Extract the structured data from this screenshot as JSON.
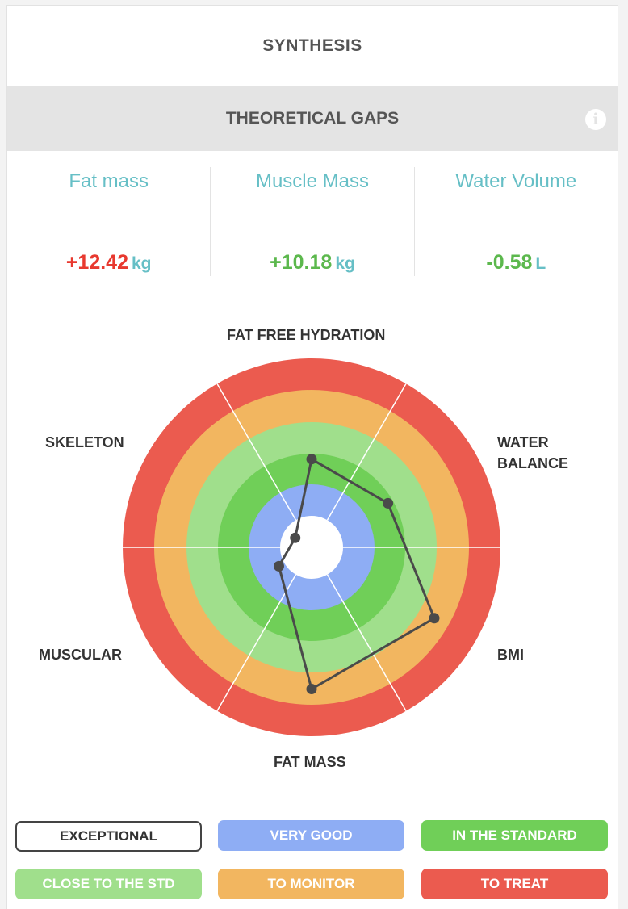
{
  "header": {
    "title": "SYNTHESIS"
  },
  "gaps": {
    "title": "THEORETICAL GAPS",
    "info_icon": "info-icon"
  },
  "metrics": [
    {
      "label": "Fat mass",
      "value": "+12.42",
      "unit": "kg",
      "color": "#e8392f"
    },
    {
      "label": "Muscle Mass",
      "value": "+10.18",
      "unit": "kg",
      "color": "#5cb84d"
    },
    {
      "label": "Water Volume",
      "value": "-0.58",
      "unit": "L",
      "color": "#5cb84d"
    }
  ],
  "chart_data": {
    "type": "radar",
    "axes": [
      "FAT FREE HYDRATION",
      "WATER BALANCE",
      "BMI",
      "FAT MASS",
      "MUSCULAR",
      "SKELETON"
    ],
    "axis_labels": {
      "fat_free_hydration": "FAT FREE HYDRATION",
      "water_balance": [
        "WATER",
        "BALANCE"
      ],
      "bmi": "BMI",
      "fat_mass": "FAT MASS",
      "muscular": "MUSCULAR",
      "skeleton": "SKELETON"
    },
    "rings": [
      "EXCEPTIONAL",
      "VERY GOOD",
      "IN THE STANDARD",
      "CLOSE TO THE STD",
      "TO MONITOR",
      "TO TREAT"
    ],
    "ring_colors": [
      "#ffffff",
      "#8eadf4",
      "#70cf58",
      "#a0df8c",
      "#f2b660",
      "#eb5b4f"
    ],
    "series": [
      {
        "values": [
          2.8,
          2.8,
          4.5,
          4.5,
          1.2,
          0.6
        ]
      }
    ],
    "scale_max": 6
  },
  "legend": [
    {
      "label": "EXCEPTIONAL",
      "color": "#ffffff"
    },
    {
      "label": "VERY GOOD",
      "color": "#8eadf4"
    },
    {
      "label": "IN THE STANDARD",
      "color": "#70cf58"
    },
    {
      "label": "CLOSE TO THE STD",
      "color": "#a0df8c"
    },
    {
      "label": "TO MONITOR",
      "color": "#f2b660"
    },
    {
      "label": "TO TREAT",
      "color": "#eb5b4f"
    }
  ]
}
